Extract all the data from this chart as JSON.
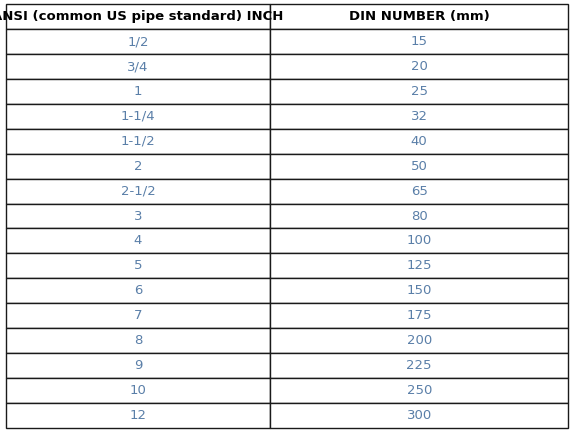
{
  "col1_header": "ANSI (common US pipe standard) INCH",
  "col2_header": "DIN NUMBER (mm)",
  "rows": [
    [
      "1/2",
      "15"
    ],
    [
      "3/4",
      "20"
    ],
    [
      "1",
      "25"
    ],
    [
      "1-1/4",
      "32"
    ],
    [
      "1-1/2",
      "40"
    ],
    [
      "2",
      "50"
    ],
    [
      "2-1/2",
      "65"
    ],
    [
      "3",
      "80"
    ],
    [
      "4",
      "100"
    ],
    [
      "5",
      "125"
    ],
    [
      "6",
      "150"
    ],
    [
      "7",
      "175"
    ],
    [
      "8",
      "200"
    ],
    [
      "9",
      "225"
    ],
    [
      "10",
      "250"
    ],
    [
      "12",
      "300"
    ]
  ],
  "header_text_color": "#000000",
  "row_text_color": "#5a7fa8",
  "border_color": "#1a1a1a",
  "bg_color": "#ffffff",
  "header_fontsize": 9.5,
  "row_fontsize": 9.5,
  "header_fontweight": "bold",
  "col_split": 0.47
}
